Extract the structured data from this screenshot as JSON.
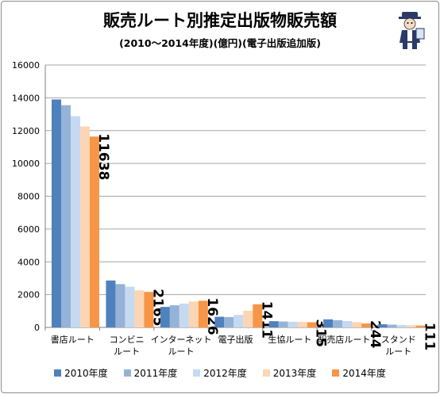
{
  "title": "販売ルート別推定出版物販売額",
  "subtitle": "(2010〜2014年度)(億円)(電子出版追加版)",
  "chart_data": {
    "type": "bar",
    "title": "販売ルート別推定出版物販売額",
    "subtitle": "(2010〜2014年度)(億円)(電子出版追加版)",
    "categories": [
      [
        "書店ルート"
      ],
      [
        "コンビニ",
        "ルート"
      ],
      [
        "インターネット",
        "ルート"
      ],
      [
        "電子出版"
      ],
      [
        "生協ルート"
      ],
      [
        "駅売店ルート"
      ],
      [
        "スタンド",
        "ルート"
      ]
    ],
    "series": [
      {
        "name": "2010年度",
        "color": "#4f81bd",
        "values": [
          13900,
          2860,
          1250,
          650,
          380,
          490,
          190
        ]
      },
      {
        "name": "2011年度",
        "color": "#95b3d7",
        "values": [
          13550,
          2640,
          1350,
          630,
          360,
          440,
          170
        ]
      },
      {
        "name": "2012年度",
        "color": "#c5d9f1",
        "values": [
          12880,
          2480,
          1450,
          760,
          340,
          390,
          150
        ]
      },
      {
        "name": "2013年度",
        "color": "#fcd5b4",
        "values": [
          12250,
          2260,
          1580,
          1020,
          330,
          320,
          130
        ]
      },
      {
        "name": "2014年度",
        "color": "#f79646",
        "values": [
          11638,
          2165,
          1626,
          1411,
          315,
          244,
          111
        ]
      }
    ],
    "data_labels": [
      "11638",
      "2165",
      "1626",
      "1411",
      "315",
      "244",
      "111"
    ],
    "ylim": [
      0,
      16000
    ],
    "yticks": [
      0,
      2000,
      4000,
      6000,
      8000,
      10000,
      12000,
      14000,
      16000
    ],
    "grid": true,
    "legend": "bottom"
  }
}
